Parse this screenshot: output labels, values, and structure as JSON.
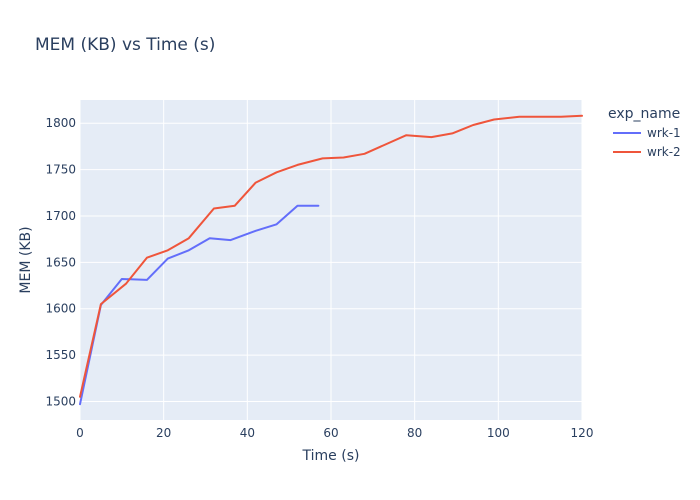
{
  "chart_data": {
    "type": "line",
    "title": "MEM (KB) vs Time (s)",
    "xlabel": "Time (s)",
    "ylabel": "MEM (KB)",
    "xlim": [
      0,
      120
    ],
    "ylim": [
      1480,
      1825
    ],
    "xticks": [
      0,
      20,
      40,
      60,
      80,
      100,
      120
    ],
    "yticks": [
      1500,
      1550,
      1600,
      1650,
      1700,
      1750,
      1800
    ],
    "grid": true,
    "legend_title": "exp_name",
    "legend_position": "top-right",
    "series": [
      {
        "name": "wrk-1",
        "color": "#636efa",
        "x": [
          0,
          5,
          10,
          16,
          21,
          26,
          31,
          36,
          42,
          47,
          52,
          57
        ],
        "y": [
          1497,
          1604,
          1632,
          1631,
          1654,
          1663,
          1676,
          1674,
          1684,
          1691,
          1711,
          1711
        ]
      },
      {
        "name": "wrk-2",
        "color": "#ef553b",
        "x": [
          0,
          5,
          11,
          16,
          21,
          26,
          32,
          37,
          42,
          47,
          52,
          58,
          63,
          68,
          73,
          78,
          84,
          89,
          94,
          99,
          105,
          110,
          115,
          120
        ],
        "y": [
          1505,
          1605,
          1627,
          1655,
          1663,
          1676,
          1708,
          1711,
          1736,
          1747,
          1755,
          1762,
          1763,
          1767,
          1777,
          1787,
          1785,
          1789,
          1798,
          1804,
          1807,
          1807,
          1807,
          1808
        ]
      }
    ]
  }
}
